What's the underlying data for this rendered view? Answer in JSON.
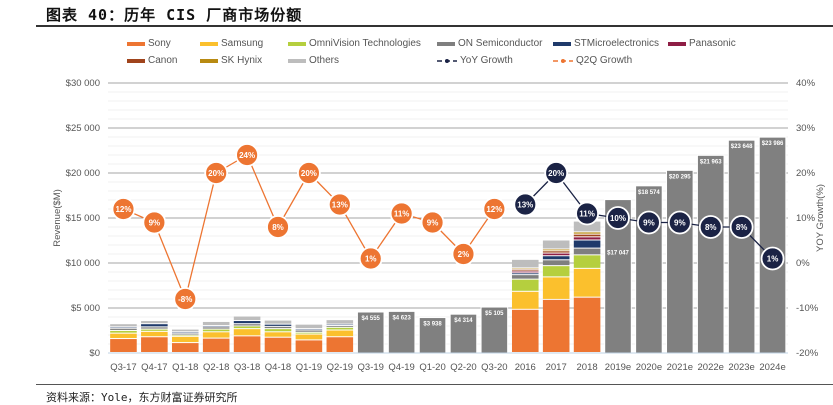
{
  "header": {
    "title": "图表 40：历年 CIS 厂商市场份额"
  },
  "footer": {
    "source": "资料来源：Yole，东方财富证券研究所"
  },
  "chart_data": {
    "type": "bar",
    "title": "图表 40：历年 CIS 厂商市场份额",
    "ylabel": "Revenue($M)",
    "y2label": "YOY Growth(%)",
    "ylim": [
      0,
      30000
    ],
    "y2lim": [
      -20,
      40
    ],
    "yticks": [
      "$0",
      "$5 000",
      "$10 000",
      "$15 000",
      "$20 000",
      "$25 000",
      "$30 000"
    ],
    "y2ticks": [
      "-20%",
      "-10%",
      "0%",
      "10%",
      "20%",
      "30%",
      "40%"
    ],
    "grid": true,
    "legend_position": "top",
    "categories": [
      "Q3-17",
      "Q4-17",
      "Q1-18",
      "Q2-18",
      "Q3-18",
      "Q4-18",
      "Q1-19",
      "Q2-19",
      "Q3-19",
      "Q4-19",
      "Q1-20",
      "Q2-20",
      "Q3-20",
      "2016",
      "2017",
      "2018",
      "2019e",
      "2020e",
      "2021e",
      "2022e",
      "2023e",
      "2024e"
    ],
    "legend": [
      {
        "name": "Sony",
        "color": "#ED7532",
        "kind": "bar"
      },
      {
        "name": "Samsung",
        "color": "#FBC02D",
        "kind": "bar"
      },
      {
        "name": "OmniVision Technologies",
        "color": "#B5CF3E",
        "kind": "bar"
      },
      {
        "name": "ON Semiconductor",
        "color": "#7F7F7F",
        "kind": "bar"
      },
      {
        "name": "STMicroelectronics",
        "color": "#1F3A6B",
        "kind": "bar"
      },
      {
        "name": "Panasonic",
        "color": "#8E1E45",
        "kind": "bar"
      },
      {
        "name": "Canon",
        "color": "#A0441C",
        "kind": "bar"
      },
      {
        "name": "SK Hynix",
        "color": "#B88A12",
        "kind": "bar"
      },
      {
        "name": "Others",
        "color": "#BDBDBD",
        "kind": "bar"
      },
      {
        "name": "YoY Growth",
        "color": "#1B2345",
        "kind": "line"
      },
      {
        "name": "Q2Q Growth",
        "color": "#ED7532",
        "kind": "line"
      }
    ],
    "stacked_series": {
      "order": [
        "Sony",
        "Samsung",
        "OmniVision Technologies",
        "ON Semiconductor",
        "STMicroelectronics",
        "Panasonic",
        "Canon",
        "SK Hynix",
        "Others"
      ],
      "periods": {
        "Q3-17": [
          1550,
          600,
          300,
          250,
          150,
          0,
          0,
          0,
          350
        ],
        "Q4-17": [
          1750,
          600,
          250,
          250,
          350,
          0,
          0,
          0,
          350
        ],
        "Q1-18": [
          1100,
          700,
          150,
          200,
          150,
          0,
          0,
          0,
          300
        ],
        "Q2-18": [
          1600,
          700,
          300,
          250,
          150,
          0,
          0,
          0,
          450
        ],
        "Q3-18": [
          1850,
          800,
          300,
          250,
          350,
          0,
          0,
          0,
          500
        ],
        "Q4-18": [
          1700,
          600,
          350,
          250,
          250,
          0,
          0,
          0,
          450
        ],
        "Q1-19": [
          1400,
          650,
          200,
          250,
          150,
          0,
          0,
          0,
          500
        ],
        "Q2-19": [
          1750,
          750,
          300,
          200,
          150,
          0,
          0,
          0,
          500
        ],
        "2016": [
          4800,
          2000,
          1350,
          500,
          200,
          200,
          200,
          150,
          950
        ],
        "2017": [
          5900,
          2500,
          1250,
          650,
          450,
          300,
          250,
          200,
          1000
        ],
        "2018": [
          6150,
          3200,
          1500,
          750,
          900,
          350,
          300,
          250,
          1200
        ]
      }
    },
    "total_bars": {
      "Q3-19": {
        "value": 4555,
        "label": "$4 555"
      },
      "Q4-19": {
        "value": 4623,
        "label": "$4 623"
      },
      "Q1-20": {
        "value": 3938,
        "label": "$3 938"
      },
      "Q2-20": {
        "value": 4314,
        "label": "$4 314"
      },
      "Q3-20": {
        "value": 5105,
        "label": "$5 105"
      },
      "2019e": {
        "value": 17047,
        "label": "$17 047"
      },
      "2020e": {
        "value": 18574,
        "label": "$18 574"
      },
      "2021e": {
        "value": 20295,
        "label": "$20 295"
      },
      "2022e": {
        "value": 21963,
        "label": "$21 963"
      },
      "2023e": {
        "value": 23648,
        "label": "$23 648"
      },
      "2024e": {
        "value": 23986,
        "label": "$23 986"
      }
    },
    "q2q_growth": {
      "name": "Q2Q Growth",
      "categories": [
        "Q3-17",
        "Q4-17",
        "Q1-18",
        "Q2-18",
        "Q3-18",
        "Q4-18",
        "Q1-19",
        "Q2-19",
        "Q3-19",
        "Q4-19",
        "Q1-20",
        "Q2-20",
        "Q3-20"
      ],
      "values": [
        12,
        9,
        -8,
        20,
        24,
        8,
        20,
        13,
        1,
        11,
        9,
        2,
        12
      ],
      "labels": [
        "12%",
        "9%",
        "-8%",
        "20%",
        "24%",
        "8%",
        "20%",
        "13%",
        "1%",
        "11%",
        "9%",
        "2%",
        "12%"
      ]
    },
    "yoy_growth": {
      "name": "YoY Growth",
      "categories": [
        "2016",
        "2017",
        "2018",
        "2019e",
        "2020e",
        "2021e",
        "2022e",
        "2023e",
        "2024e"
      ],
      "values": [
        13,
        20,
        11,
        10,
        9,
        9,
        8,
        8,
        1
      ],
      "labels": [
        "13%",
        "20%",
        "11%",
        "10%",
        "9%",
        "9%",
        "8%",
        "8%",
        "1%"
      ]
    }
  }
}
